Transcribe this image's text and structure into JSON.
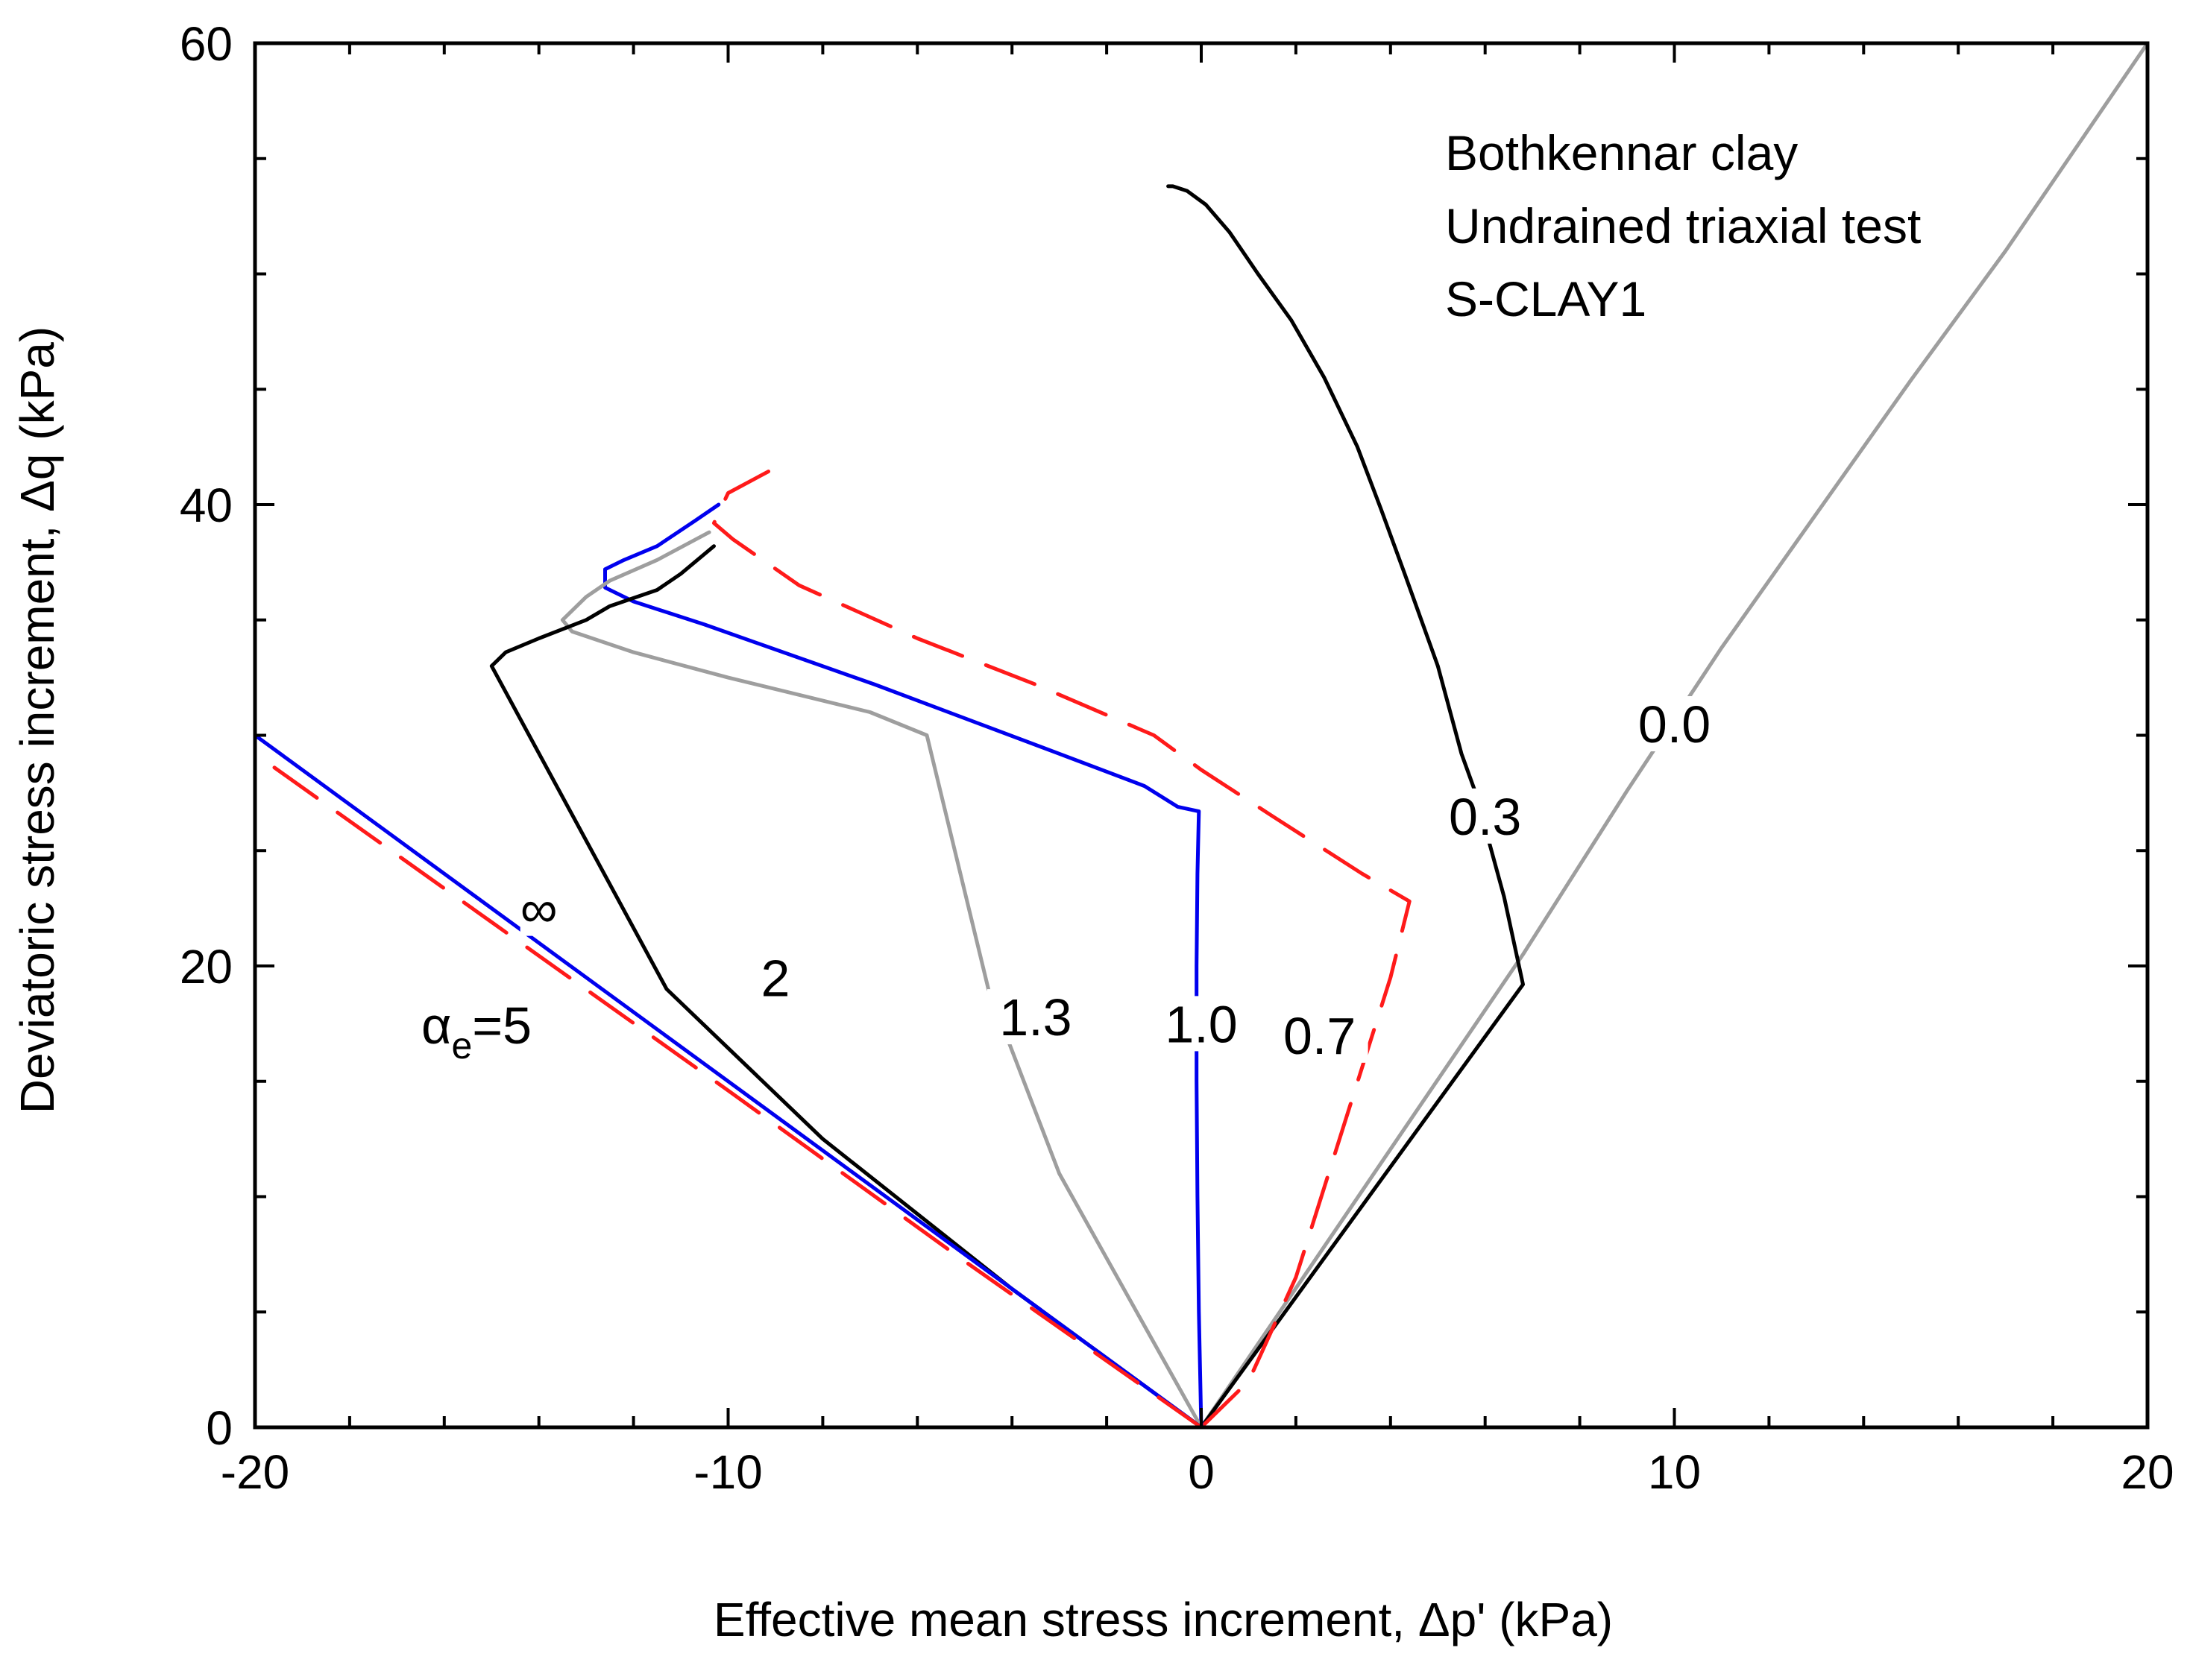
{
  "chart_data": {
    "type": "line",
    "title": "",
    "xlabel": "Effective mean stress increment, Δp' (kPa)",
    "ylabel": "Deviatoric stress increment, Δq (kPa)",
    "xlim": [
      -20,
      20
    ],
    "ylim": [
      0,
      60
    ],
    "x_ticks": [
      -20,
      -10,
      0,
      10,
      20
    ],
    "x_tick_labels": [
      "-20",
      "-10",
      "0",
      "10",
      "20"
    ],
    "y_ticks": [
      0,
      20,
      40,
      60
    ],
    "y_tick_labels": [
      "0",
      "20",
      "40",
      "60"
    ],
    "grid": false,
    "legend": "none",
    "annotation_lines": [
      "Bothkennar clay",
      "Undrained triaxial test",
      "S-CLAY1"
    ],
    "alpha_label": {
      "symbol": "α",
      "subscript": "e",
      "text": "=5"
    },
    "series": [
      {
        "name": "0.0",
        "label": "0.0",
        "color": "#9e9e9e",
        "dash": "solid",
        "points": [
          [
            0,
            0
          ],
          [
            6.8,
            20.5
          ],
          [
            9,
            27.6
          ],
          [
            11,
            33.8
          ],
          [
            13,
            39.6
          ],
          [
            15,
            45.4
          ],
          [
            17,
            51
          ],
          [
            19,
            57
          ],
          [
            20,
            60
          ]
        ],
        "label_pos": [
          10,
          30.5
        ]
      },
      {
        "name": "0.3",
        "label": "0.3",
        "color": "#000000",
        "dash": "solid",
        "points": [
          [
            0,
            0
          ],
          [
            6.8,
            19.2
          ],
          [
            6.4,
            23
          ],
          [
            5.8,
            27.5
          ],
          [
            5.5,
            29.2
          ],
          [
            5,
            33
          ],
          [
            4.3,
            37
          ],
          [
            3.8,
            39.8
          ],
          [
            3.3,
            42.5
          ],
          [
            2.6,
            45.5
          ],
          [
            1.9,
            48
          ],
          [
            1.2,
            50
          ],
          [
            0.6,
            51.8
          ],
          [
            0.1,
            53
          ],
          [
            -0.3,
            53.6
          ],
          [
            -0.6,
            53.8
          ],
          [
            -0.7,
            53.8
          ]
        ],
        "label_pos": [
          6,
          26.5
        ]
      },
      {
        "name": "0.7",
        "label": "0.7",
        "color": "#ff1a1a",
        "dash": "dashed",
        "points": [
          [
            0,
            0
          ],
          [
            1,
            2
          ],
          [
            2,
            6.5
          ],
          [
            3,
            13
          ],
          [
            4,
            19.5
          ],
          [
            4.4,
            22.8
          ],
          [
            3.4,
            24
          ],
          [
            1.5,
            26.5
          ],
          [
            0,
            28.5
          ],
          [
            -1,
            30
          ],
          [
            -3.5,
            32.2
          ],
          [
            -6,
            34.2
          ],
          [
            -8.5,
            36.5
          ],
          [
            -9.9,
            38.5
          ],
          [
            -10.3,
            39.2
          ],
          [
            -10,
            40.5
          ],
          [
            -9,
            41.6
          ]
        ],
        "label_pos": [
          2.5,
          17
        ]
      },
      {
        "name": "1.0",
        "label": "1.0",
        "color": "#0000ee",
        "dash": "solid",
        "points": [
          [
            0,
            0
          ],
          [
            -0.05,
            5
          ],
          [
            -0.08,
            10
          ],
          [
            -0.1,
            15
          ],
          [
            -0.1,
            20
          ],
          [
            -0.08,
            24
          ],
          [
            -0.05,
            26.7
          ],
          [
            -0.5,
            26.9
          ],
          [
            -1.2,
            27.8
          ],
          [
            -3,
            29.2
          ],
          [
            -6.9,
            32.2
          ],
          [
            -10.5,
            34.8
          ],
          [
            -12,
            35.8
          ],
          [
            -12.6,
            36.4
          ],
          [
            -12.6,
            37.2
          ],
          [
            -12.2,
            37.6
          ],
          [
            -11.5,
            38.2
          ],
          [
            -10.7,
            39.3
          ],
          [
            -10.2,
            40
          ]
        ],
        "label_pos": [
          0,
          17.5
        ]
      },
      {
        "name": "1.3",
        "label": "1.3",
        "color": "#9e9e9e",
        "dash": "solid",
        "points": [
          [
            0,
            0
          ],
          [
            -1.5,
            5.5
          ],
          [
            -3,
            11
          ],
          [
            -4.5,
            19
          ],
          [
            -5.8,
            30
          ],
          [
            -7,
            31
          ],
          [
            -10,
            32.5
          ],
          [
            -12,
            33.6
          ],
          [
            -13.3,
            34.5
          ],
          [
            -13.5,
            35
          ],
          [
            -13,
            36
          ],
          [
            -12.5,
            36.7
          ],
          [
            -11.5,
            37.6
          ],
          [
            -10.4,
            38.8
          ]
        ],
        "label_pos": [
          -3.5,
          17.8
        ]
      },
      {
        "name": "2",
        "label": "2",
        "color": "#000000",
        "dash": "solid",
        "points": [
          [
            0,
            0
          ],
          [
            -4,
            6
          ],
          [
            -8,
            12.5
          ],
          [
            -11.3,
            19
          ],
          [
            -15,
            33
          ],
          [
            -14.7,
            33.6
          ],
          [
            -14,
            34.2
          ],
          [
            -13,
            35
          ],
          [
            -12.5,
            35.6
          ],
          [
            -11.5,
            36.3
          ],
          [
            -11,
            37
          ],
          [
            -10.3,
            38.2
          ]
        ],
        "label_pos": [
          -9,
          19.5
        ]
      },
      {
        "name": "∞",
        "label": "∞",
        "color": "#0000ee",
        "dash": "solid",
        "points": [
          [
            0,
            0
          ],
          [
            -20,
            30
          ]
        ],
        "label_pos": [
          -14,
          22.5
        ]
      },
      {
        "name": "αe=5",
        "label": "",
        "color": "#ff1a1a",
        "dash": "dashed",
        "points": [
          [
            0,
            0
          ],
          [
            -5,
            7.2
          ],
          [
            -10,
            14.6
          ],
          [
            -15,
            21.9
          ],
          [
            -20,
            29.2
          ]
        ],
        "label_pos": null
      }
    ]
  }
}
